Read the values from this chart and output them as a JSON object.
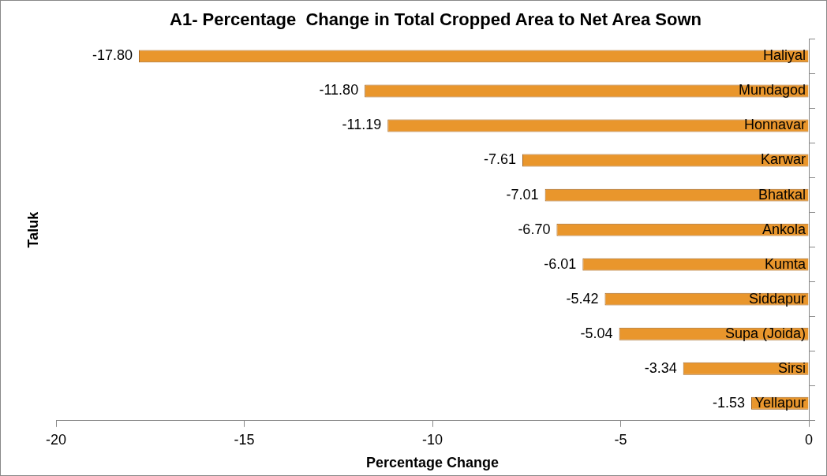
{
  "chart_data": {
    "type": "bar",
    "orientation": "horizontal",
    "title": "A1- Percentage  Change in Total Cropped Area to Net Area Sown",
    "xlabel": "Percentage Change",
    "ylabel": "Taluk",
    "categories": [
      "Haliyal",
      "Mundagod",
      "Honnavar",
      "Karwar",
      "Bhatkal",
      "Ankola",
      "Kumta",
      "Siddapur",
      "Supa (Joida)",
      "Sirsi",
      "Yellapur"
    ],
    "values": [
      -17.8,
      -11.8,
      -11.19,
      -7.61,
      -7.01,
      -6.7,
      -6.01,
      -5.42,
      -5.04,
      -3.34,
      -1.53
    ],
    "value_labels": [
      "-17.80",
      "-11.80",
      "-11.19",
      "-7.61",
      "-7.01",
      "-6.70",
      "-6.01",
      "-5.42",
      "-5.04",
      "-3.34",
      "-1.53"
    ],
    "color": "#e9962c",
    "xlim": [
      -20,
      0
    ],
    "xticks": [
      -20,
      -15,
      -10,
      -5,
      0
    ],
    "grid": false,
    "legend": false
  }
}
